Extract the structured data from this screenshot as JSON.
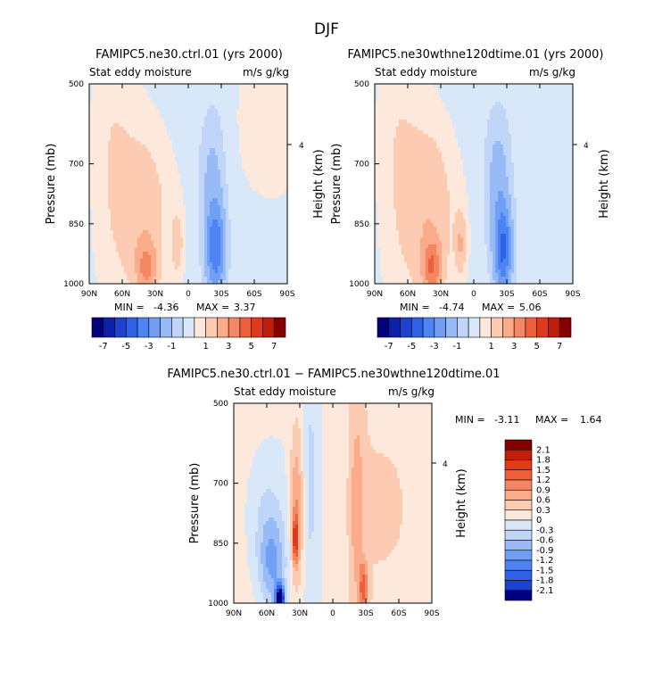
{
  "figure": {
    "title": "DJF"
  },
  "chart_data": [
    {
      "type": "heatmap",
      "title": "FAMIPC5.ne30.ctrl.01 (yrs 2000)",
      "subtitle_left": "Stat eddy moisture",
      "subtitle_right": "m/s g/kg",
      "ylabel": "Pressure (mb)",
      "y2label": "Height (km)",
      "y2ticks": [
        "4"
      ],
      "x": [
        "90N",
        "60N",
        "30N",
        "0",
        "30S",
        "60S",
        "90S"
      ],
      "y": [
        "500",
        "700",
        "850",
        "1000"
      ],
      "min_label": "MIN =",
      "min_value": "-4.36",
      "max_label": "MAX =",
      "max_value": "3.37",
      "colorbar_labels": [
        "-7",
        "-5",
        "-3",
        "-1",
        "1",
        "3",
        "5",
        "7"
      ],
      "colorbar_colors": [
        "#00007f",
        "#0d1fa5",
        "#1d42cc",
        "#2f62e6",
        "#4d83f3",
        "#709ff6",
        "#98baf7",
        "#c0d6f8",
        "#d9e8f9",
        "#fde8dc",
        "#fccbb1",
        "#f9ab8a",
        "#f48762",
        "#ef603a",
        "#e03a1c",
        "#c01d0b",
        "#830000"
      ],
      "blobs": [
        {
          "lat": 40,
          "p": 820,
          "wlat": 25,
          "wp": 220,
          "value": 1.6
        },
        {
          "lat": 38,
          "p": 960,
          "wlat": 10,
          "wp": 70,
          "value": 2.4
        },
        {
          "lat": 10,
          "p": 900,
          "wlat": 5,
          "wp": 80,
          "value": 1.4
        },
        {
          "lat": -25,
          "p": 920,
          "wlat": 9,
          "wp": 110,
          "value": -3.4
        },
        {
          "lat": -22,
          "p": 760,
          "wlat": 12,
          "wp": 200,
          "value": -1.6
        },
        {
          "lat": -70,
          "p": 600,
          "wlat": 25,
          "wp": 250,
          "value": 0.6
        },
        {
          "lat": 70,
          "p": 650,
          "wlat": 18,
          "wp": 300,
          "value": 0.6
        }
      ]
    },
    {
      "type": "heatmap",
      "title": "FAMIPC5.ne30wthne120dtime.01 (yrs 2000)",
      "subtitle_left": "Stat eddy moisture",
      "subtitle_right": "m/s g/kg",
      "ylabel": "Pressure (mb)",
      "y2label": "Height (km)",
      "y2ticks": [
        "4"
      ],
      "x": [
        "90N",
        "60N",
        "30N",
        "0",
        "30S",
        "60S",
        "90S"
      ],
      "y": [
        "500",
        "700",
        "850",
        "1000"
      ],
      "min_label": "MIN =",
      "min_value": "-4.74",
      "max_label": "MAX =",
      "max_value": "5.06",
      "colorbar_labels": [
        "-7",
        "-5",
        "-3",
        "-1",
        "1",
        "3",
        "5",
        "7"
      ],
      "colorbar_colors": [
        "#00007f",
        "#0d1fa5",
        "#1d42cc",
        "#2f62e6",
        "#4d83f3",
        "#709ff6",
        "#98baf7",
        "#c0d6f8",
        "#d9e8f9",
        "#fde8dc",
        "#fccbb1",
        "#f9ab8a",
        "#f48762",
        "#ef603a",
        "#e03a1c",
        "#c01d0b",
        "#830000"
      ],
      "blobs": [
        {
          "lat": 40,
          "p": 820,
          "wlat": 24,
          "wp": 230,
          "value": 1.8
        },
        {
          "lat": 38,
          "p": 960,
          "wlat": 9,
          "wp": 70,
          "value": 3.0
        },
        {
          "lat": 12,
          "p": 900,
          "wlat": 5,
          "wp": 80,
          "value": 1.8
        },
        {
          "lat": -27,
          "p": 920,
          "wlat": 8,
          "wp": 110,
          "value": -3.8
        },
        {
          "lat": -22,
          "p": 760,
          "wlat": 12,
          "wp": 200,
          "value": -1.8
        },
        {
          "lat": 70,
          "p": 650,
          "wlat": 18,
          "wp": 300,
          "value": 0.6
        }
      ]
    },
    {
      "type": "heatmap",
      "title": "FAMIPC5.ne30.ctrl.01 − FAMIPC5.ne30wthne120dtime.01",
      "subtitle_left": "Stat eddy moisture",
      "subtitle_right": "m/s g/kg",
      "ylabel": "Pressure (mb)",
      "y2label": "Height (km)",
      "y2ticks": [
        "4"
      ],
      "x": [
        "90N",
        "60N",
        "30N",
        "0",
        "30S",
        "60S",
        "90S"
      ],
      "y": [
        "500",
        "700",
        "850",
        "1000"
      ],
      "min_label": "MIN =",
      "min_value": "-3.11",
      "max_label": "MAX =",
      "max_value": "1.64",
      "colorbar_labels": [
        "2.1",
        "1.8",
        "1.5",
        "1.2",
        "0.9",
        "0.6",
        "0.3",
        "0",
        "-0.3",
        "-0.6",
        "-0.9",
        "-1.2",
        "-1.5",
        "-1.8",
        "-2.1"
      ],
      "colorbar_colors": [
        "#830000",
        "#c01d0b",
        "#e03a1c",
        "#ef603a",
        "#f48762",
        "#f9ab8a",
        "#fccbb1",
        "#fde8dc",
        "#d9e8f9",
        "#c0d6f8",
        "#98baf7",
        "#709ff6",
        "#4d83f3",
        "#2f62e6",
        "#1d42cc",
        "#00007f"
      ],
      "blobs": [
        {
          "lat": 33,
          "p": 760,
          "wlat": 6,
          "wp": 220,
          "value": 0.9
        },
        {
          "lat": 34,
          "p": 840,
          "wlat": 3,
          "wp": 60,
          "value": 1.2
        },
        {
          "lat": 20,
          "p": 700,
          "wlat": 5,
          "wp": 220,
          "value": -0.4
        },
        {
          "lat": -22,
          "p": 760,
          "wlat": 6,
          "wp": 230,
          "value": 0.6
        },
        {
          "lat": -28,
          "p": 960,
          "wlat": 4,
          "wp": 60,
          "value": 1.1
        },
        {
          "lat": 48,
          "p": 990,
          "wlat": 4,
          "wp": 35,
          "value": -2.8
        },
        {
          "lat": 55,
          "p": 900,
          "wlat": 12,
          "wp": 120,
          "value": -0.9
        },
        {
          "lat": 62,
          "p": 780,
          "wlat": 18,
          "wp": 220,
          "value": -0.5
        },
        {
          "lat": -60,
          "p": 760,
          "wlat": 25,
          "wp": 300,
          "value": 0.35
        }
      ]
    }
  ]
}
